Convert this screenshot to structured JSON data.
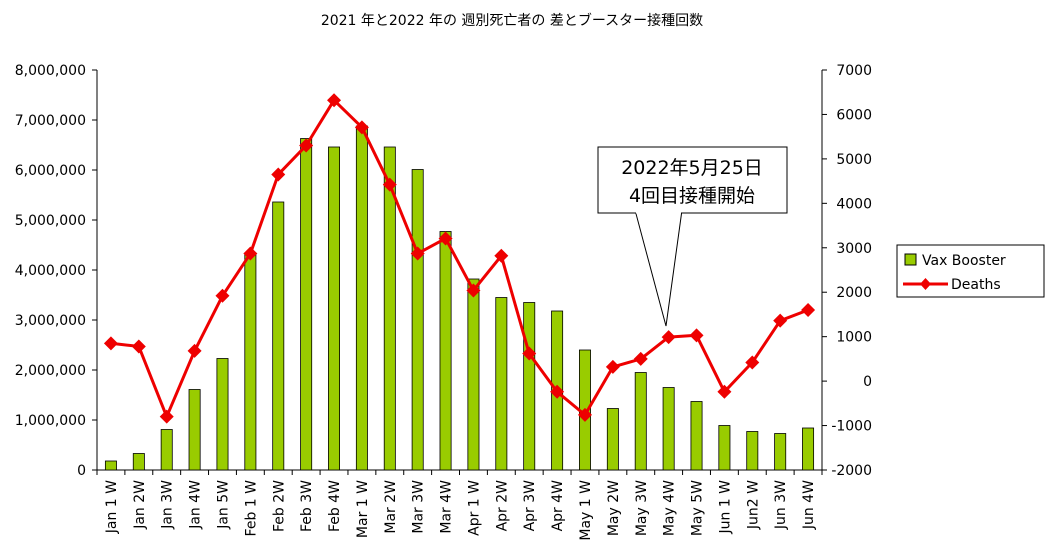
{
  "chart_data": {
    "type": "bar",
    "title": "2021 年と2022 年の 週別死亡者の 差とブースター接種回数",
    "xlabel": "",
    "ylabel": "",
    "categories": [
      "Jan 1 W",
      "Jan 2W",
      "Jan 3W",
      "Jan 4W",
      "Jan 5W",
      "Feb 1 W",
      "Feb 2W",
      "Feb 3W",
      "Feb 4W",
      "Mar 1 W",
      "Mar 2W",
      "Mar 3W",
      "Mar 4W",
      "Apr 1 W",
      "Apr 2W",
      "Apr 3W",
      "Apr 4W",
      "May 1 W",
      "May 2W",
      "May 3W",
      "May 4W",
      "May 5W",
      "Jun 1 W",
      "Jun2 W",
      "Jun 3W",
      "Jun 4W"
    ],
    "ylim": [
      0,
      8000000
    ],
    "y2lim": [
      -2000,
      7000
    ],
    "left_ticks": [
      "0",
      "1,000,000",
      "2,000,000",
      "3,000,000",
      "4,000,000",
      "5,000,000",
      "6,000,000",
      "7,000,000",
      "8,000,000"
    ],
    "right_ticks": [
      "-2000",
      "-1000",
      "0",
      "1000",
      "2000",
      "3000",
      "4000",
      "5000",
      "6000",
      "7000"
    ],
    "grid": false,
    "legend_position": "right",
    "series": [
      {
        "name": "Vax Booster",
        "type": "bar",
        "axis": "left",
        "color": "#99cc00",
        "values": [
          180000,
          330000,
          810000,
          1610000,
          2230000,
          4330000,
          5360000,
          6630000,
          6460000,
          6880000,
          6460000,
          6010000,
          4770000,
          3820000,
          3450000,
          3350000,
          3180000,
          2400000,
          1230000,
          1950000,
          1650000,
          1370000,
          890000,
          770000,
          730000,
          840000
        ]
      },
      {
        "name": "Deaths",
        "type": "line",
        "axis": "right",
        "color": "#ee0000",
        "values": [
          850,
          780,
          -800,
          680,
          1920,
          2870,
          4650,
          5300,
          6320,
          5710,
          4420,
          2870,
          3210,
          2040,
          2820,
          620,
          -240,
          -760,
          320,
          500,
          990,
          1030,
          -240,
          420,
          1360,
          1600
        ]
      }
    ],
    "annotation": {
      "line1": "2022年5月25日",
      "line2": "4回目接種開始",
      "points_to": "May 4W"
    }
  }
}
